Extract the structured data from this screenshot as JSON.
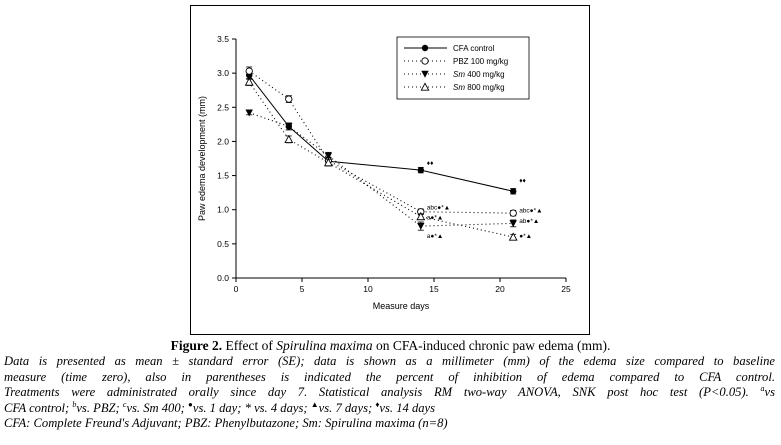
{
  "chart_data": {
    "type": "line",
    "xlabel": "Measure days",
    "ylabel": "Paw edema development (mm)",
    "xlim": [
      0,
      25
    ],
    "ylim": [
      0.0,
      3.5
    ],
    "xticks": [
      0,
      5,
      10,
      15,
      20,
      25
    ],
    "yticks": [
      0.0,
      0.5,
      1.0,
      1.5,
      2.0,
      2.5,
      3.0,
      3.5
    ],
    "grid": false,
    "legend_position": "top-right",
    "x": [
      1,
      4,
      7,
      14,
      21
    ],
    "series": [
      {
        "name": "CFA control",
        "values": [
          2.97,
          2.22,
          1.71,
          1.58,
          1.27
        ],
        "errors": [
          0.06,
          0.05,
          0.05,
          0.04,
          0.04
        ],
        "marker": "filled-circle",
        "line": "solid"
      },
      {
        "name": "PBZ 100 mg/kg",
        "values": [
          3.03,
          2.62,
          1.72,
          0.97,
          0.95
        ],
        "errors": [
          0.06,
          0.05,
          0.05,
          0.04,
          0.04
        ],
        "marker": "open-circle",
        "line": "dotted"
      },
      {
        "name": "Sm 400 mg/kg",
        "values": [
          2.42,
          2.22,
          1.79,
          0.76,
          0.8
        ],
        "errors": [
          0.03,
          0.05,
          0.05,
          0.06,
          0.05
        ],
        "marker": "filled-triangle-down",
        "line": "dotted"
      },
      {
        "name": "Sm 800 mg/kg",
        "values": [
          2.87,
          2.03,
          1.69,
          0.9,
          0.6
        ],
        "errors": [
          0.05,
          0.05,
          0.05,
          0.04,
          0.04
        ],
        "marker": "open-triangle",
        "line": "dotted"
      }
    ],
    "annotations": [
      {
        "x": 14,
        "y": 1.7,
        "text": "♦♦"
      },
      {
        "x": 14,
        "y": 1.05,
        "text": "abc●*▲"
      },
      {
        "x": 14,
        "y": 0.9,
        "text": "a●*▲"
      },
      {
        "x": 14,
        "y": 0.63,
        "text": "a●*▲"
      },
      {
        "x": 21,
        "y": 1.44,
        "text": "♦♦"
      },
      {
        "x": 21,
        "y": 1.0,
        "text": "abc●*▲"
      },
      {
        "x": 21,
        "y": 0.85,
        "text": "ab●*▲"
      },
      {
        "x": 21,
        "y": 0.63,
        "text": "●*▲"
      }
    ]
  },
  "caption": {
    "fig_label": "Figure 2.",
    "title_pre": " Effect of ",
    "title_species": "Spirulina maxima",
    "title_post": " on CFA-induced chronic paw edema (mm).",
    "line1": "Data is presented as mean ± standard error (SE); data is shown as a millimeter (mm) of the edema size compared to baseline",
    "line2": "measure (time zero), also in parentheses is indicated the percent of inhibition of edema compared to CFA control.",
    "line3_pre": "Treatments were administrated orally since day 7. Statistical analysis RM two-way ANOVA, SNK post hoc test (P<0.05).",
    "sup_a": "a",
    "line3_post": "vs",
    "line4_a": "CFA control;",
    "sup_b": "b",
    "line4_b": "vs. PBZ;",
    "sup_c": "c",
    "line4_c": "vs. Sm 400;",
    "sup_dot": "●",
    "line4_d": "vs. 1 day; * vs. 4 days;",
    "sup_tri": "▲",
    "line4_e": "vs. 7 days;",
    "sup_dia": "♦",
    "line4_f": "vs. 14 days",
    "line5": "CFA: Complete Freund's Adjuvant; PBZ: Phenylbutazone; Sm: Spirulina maxima (n=8)"
  }
}
